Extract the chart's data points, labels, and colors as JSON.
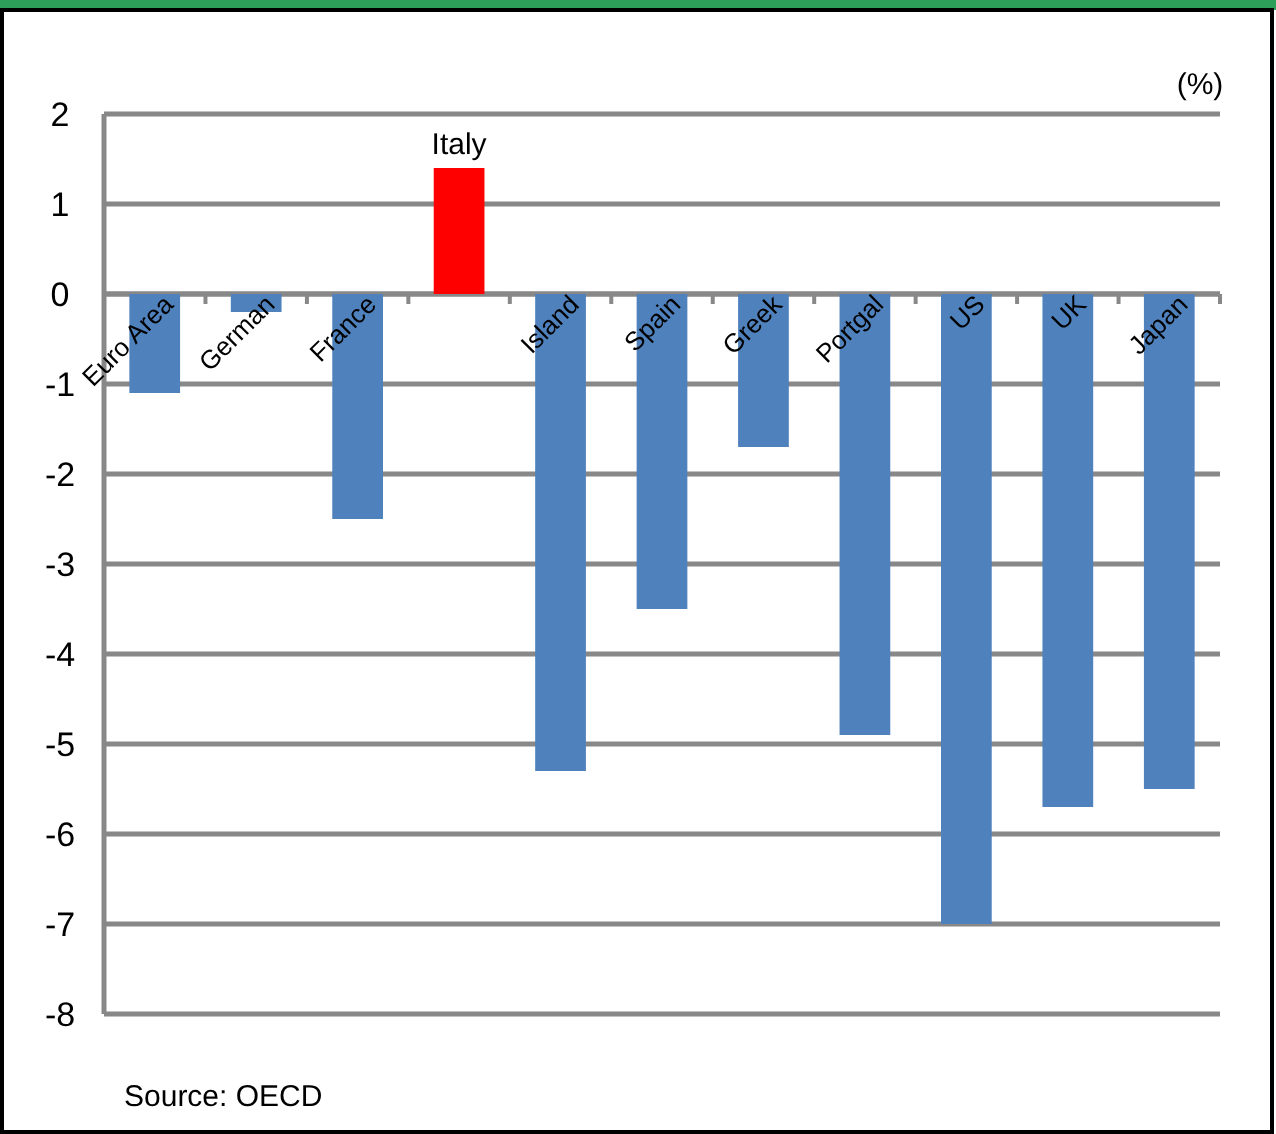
{
  "chart_data": {
    "type": "bar",
    "ylabel": "(%)",
    "categories": [
      "Euro Area",
      "German",
      "France",
      "Italy",
      "Island",
      "Spain",
      "Greek",
      "Portgal",
      "US",
      "UK",
      "Japan"
    ],
    "values": [
      -1.1,
      -0.2,
      -2.5,
      1.4,
      -5.3,
      -3.5,
      -1.7,
      -4.9,
      -7.0,
      -5.7,
      -5.5
    ],
    "colors": [
      "#4f81bd",
      "#4f81bd",
      "#4f81bd",
      "#ff0000",
      "#4f81bd",
      "#4f81bd",
      "#4f81bd",
      "#4f81bd",
      "#4f81bd",
      "#4f81bd",
      "#4f81bd"
    ],
    "ylim": [
      -8,
      2
    ],
    "yticks": [
      -8,
      -7,
      -6,
      -5,
      -4,
      -3,
      -2,
      -1,
      0,
      1,
      2
    ],
    "grid": "y",
    "annotations": [
      "Source: OECD"
    ]
  }
}
